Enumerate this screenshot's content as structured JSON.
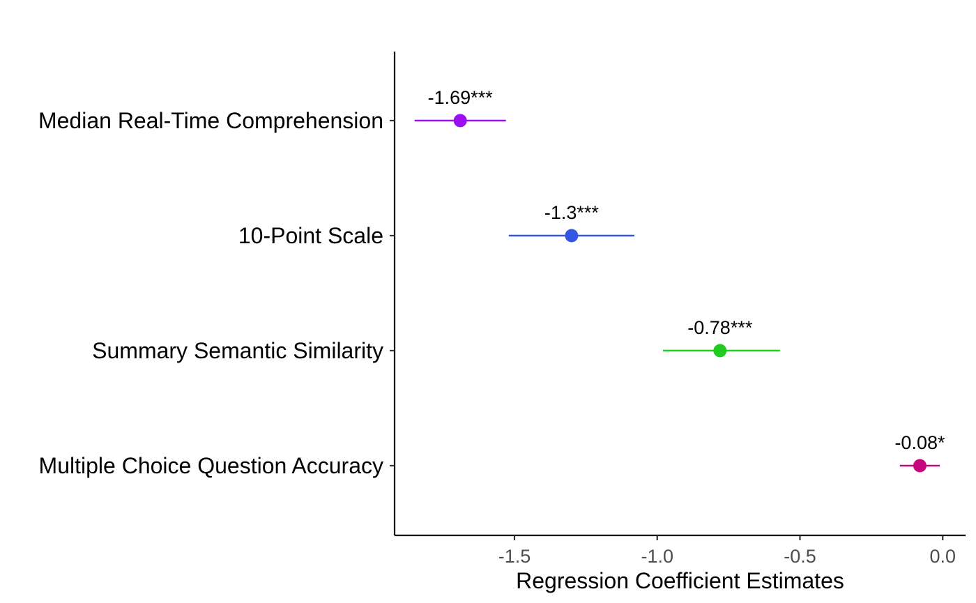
{
  "chart_data": {
    "type": "scatter",
    "subtype": "coefficient-plot",
    "title": "",
    "xlabel": "Regression Coefficient Estimates",
    "ylabel": "",
    "xlim": [
      -1.92,
      0.08
    ],
    "xticks": [
      -1.5,
      -1.0,
      -0.5,
      0.0
    ],
    "xtick_labels": [
      "-1.5",
      "-1.0",
      "-0.5",
      "0.0"
    ],
    "grid": false,
    "legend": "none",
    "categories": [
      "Median Real-Time Comprehension",
      "10-Point Scale",
      "Summary Semantic Similarity",
      "Multiple Choice Question Accuracy"
    ],
    "estimates": [
      -1.69,
      -1.3,
      -0.78,
      -0.08
    ],
    "ci_low": [
      -1.85,
      -1.52,
      -0.98,
      -0.15
    ],
    "ci_high": [
      -1.53,
      -1.08,
      -0.57,
      -0.01
    ],
    "value_labels": [
      "-1.69***",
      "-1.3***",
      "-0.78***",
      "-0.08*"
    ],
    "colors": [
      "#9b0ff0",
      "#3357e0",
      "#1fcc1f",
      "#c7087d"
    ]
  }
}
